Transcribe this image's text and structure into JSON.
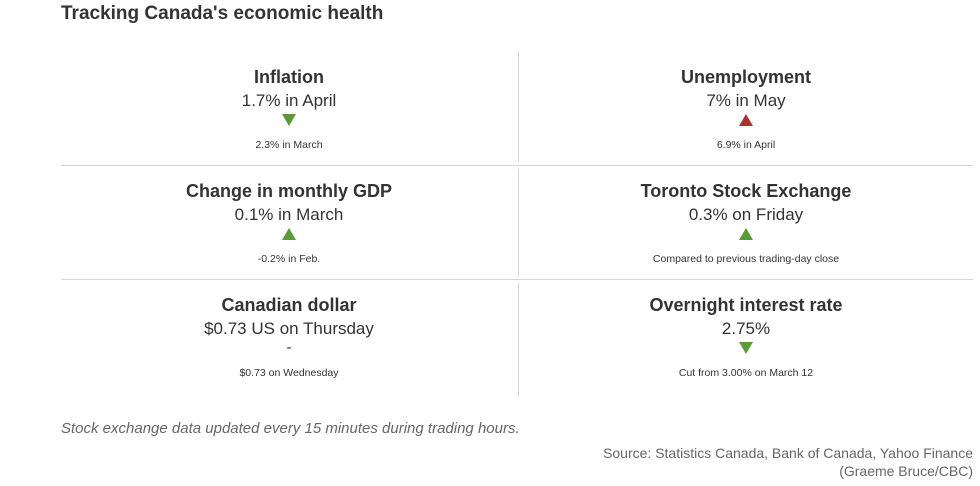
{
  "title": "Tracking Canada's economic health",
  "colors": {
    "down": "#5a9a38",
    "up_good": "#5a9a38",
    "up_bad": "#a8322d"
  },
  "cards": [
    {
      "label": "Inflation",
      "value": "1.7% in April",
      "indicator": "down-arrow-green-icon",
      "sub": "2.3% in March"
    },
    {
      "label": "Unemployment",
      "value": "7% in May",
      "indicator": "up-arrow-red-icon",
      "sub": "6.9% in April"
    },
    {
      "label": "Change in monthly GDP",
      "value": "0.1% in March",
      "indicator": "up-arrow-green-icon",
      "sub": "-0.2% in Feb."
    },
    {
      "label": "Toronto Stock Exchange",
      "value": "0.3% on Friday",
      "indicator": "up-arrow-green-icon",
      "sub": "Compared to previous trading-day close"
    },
    {
      "label": "Canadian dollar",
      "value": "$0.73 US on Thursday",
      "indicator_text": "-",
      "sub": "$0.73 on Wednesday"
    },
    {
      "label": "Overnight interest rate",
      "value": "2.75%",
      "indicator": "down-arrow-green-icon",
      "sub": "Cut from 3.00% on March 12"
    }
  ],
  "note": "Stock exchange data updated every 15 minutes during trading hours.",
  "source_line1": "Source: Statistics Canada, Bank of Canada, Yahoo Finance",
  "source_line2": "(Graeme Bruce/CBC)"
}
